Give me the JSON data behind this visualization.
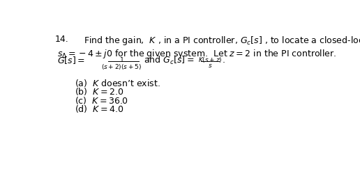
{
  "background_color": "#ffffff",
  "text_color": "#000000",
  "figsize": [
    5.16,
    2.66
  ],
  "dpi": 100,
  "main_fontsize": 9,
  "small_fontsize": 6.5,
  "q_num": "14.",
  "line1": "Find the gain,  $K$ , in a PI controller, $G_c[s]$ , to locate a closed-loop pole at",
  "line2": "$s_\\Delta = -4 \\pm j0$ for the given system.  Let $z = 2$ in the PI controller.",
  "glabel": "$G[s] = $",
  "gnum": "$1$",
  "gdenom": "$(s+2)(s+5)$",
  "gand": "and $G_c[s] = $",
  "gcnum": "$K(s+z)$",
  "gcdenom": "$s$",
  "period": ".",
  "answers": [
    "(a)  $K$ doesn’t exist.",
    "(b)  $K = 2.0$",
    "(c)  $K = 36.0$",
    "(d)  $K = 4.0$"
  ]
}
